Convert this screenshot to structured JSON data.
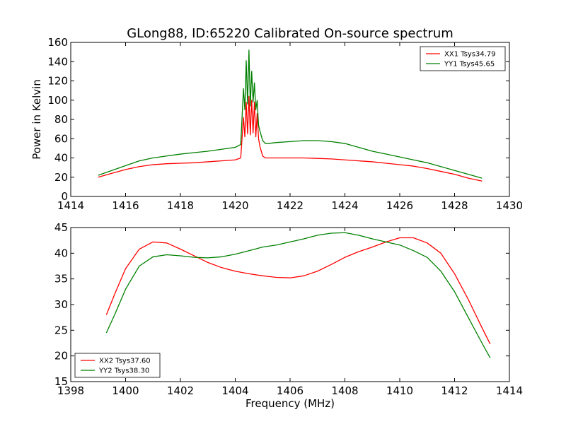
{
  "chart_data": [
    {
      "type": "line",
      "title": "GLong88, ID:65220 Calibrated On-source spectrum",
      "xlabel": "",
      "ylabel": "Power in Kelvin",
      "xlim": [
        1414,
        1430
      ],
      "ylim": [
        0,
        160
      ],
      "xticks": [
        "1414",
        "1416",
        "1418",
        "1420",
        "1422",
        "1424",
        "1426",
        "1428",
        "1430"
      ],
      "yticks": [
        "0",
        "20",
        "40",
        "60",
        "80",
        "100",
        "120",
        "140",
        "160"
      ],
      "legend_position": "top-right",
      "series": [
        {
          "name": "XX1 Tsys34.79",
          "color": "#ff0000",
          "x": [
            1415.0,
            1415.5,
            1416.0,
            1416.5,
            1417.0,
            1417.5,
            1418.0,
            1418.5,
            1419.0,
            1419.5,
            1420.0,
            1420.2,
            1420.3,
            1420.35,
            1420.4,
            1420.45,
            1420.5,
            1420.55,
            1420.6,
            1420.65,
            1420.7,
            1420.75,
            1420.8,
            1420.85,
            1420.9,
            1421.0,
            1421.1,
            1421.2,
            1421.5,
            1422.0,
            1422.5,
            1423.0,
            1423.5,
            1424.0,
            1424.5,
            1425.0,
            1425.5,
            1426.0,
            1426.5,
            1427.0,
            1427.5,
            1428.0,
            1428.5,
            1429.0
          ],
          "y": [
            20,
            24,
            28,
            31,
            33,
            34,
            34.5,
            35,
            36,
            37,
            38,
            40,
            82,
            62,
            98,
            65,
            104,
            64,
            100,
            66,
            98,
            62,
            86,
            60,
            52,
            42,
            40,
            40,
            40,
            40,
            40,
            39.5,
            39,
            38,
            37,
            36,
            34.5,
            33,
            31.5,
            29,
            26,
            23,
            19,
            16
          ]
        },
        {
          "name": "YY1 Tsys45.65",
          "color": "#008000",
          "x": [
            1415.0,
            1415.5,
            1416.0,
            1416.5,
            1417.0,
            1417.5,
            1418.0,
            1418.5,
            1419.0,
            1419.5,
            1420.0,
            1420.2,
            1420.3,
            1420.35,
            1420.4,
            1420.45,
            1420.5,
            1420.55,
            1420.6,
            1420.65,
            1420.7,
            1420.75,
            1420.8,
            1420.85,
            1420.9,
            1421.0,
            1421.1,
            1421.2,
            1421.5,
            1422.0,
            1422.5,
            1423.0,
            1423.5,
            1424.0,
            1424.5,
            1425.0,
            1425.5,
            1426.0,
            1426.5,
            1427.0,
            1427.5,
            1428.0,
            1428.5,
            1429.0
          ],
          "y": [
            22,
            27,
            32,
            37,
            40,
            42,
            44,
            45.5,
            47,
            49,
            51,
            54,
            112,
            90,
            141,
            96,
            152,
            94,
            130,
            98,
            118,
            90,
            100,
            74,
            68,
            58,
            55,
            55,
            56,
            57,
            58,
            58,
            57,
            55,
            51,
            47,
            44,
            41,
            38,
            35,
            31,
            27,
            23,
            19
          ]
        }
      ]
    },
    {
      "type": "line",
      "title": "",
      "xlabel": "Frequency (MHz)",
      "ylabel": "",
      "xlim": [
        1398,
        1414
      ],
      "ylim": [
        15,
        45
      ],
      "xticks": [
        "1398",
        "1400",
        "1402",
        "1404",
        "1406",
        "1408",
        "1410",
        "1412",
        "1414"
      ],
      "yticks": [
        "15",
        "20",
        "25",
        "30",
        "35",
        "40",
        "45"
      ],
      "legend_position": "bottom-left",
      "series": [
        {
          "name": "XX2 Tsys37.60",
          "color": "#ff0000",
          "x": [
            1399.3,
            1399.6,
            1400.0,
            1400.5,
            1401.0,
            1401.5,
            1402.0,
            1402.5,
            1403.0,
            1403.5,
            1404.0,
            1404.5,
            1405.0,
            1405.5,
            1406.0,
            1406.5,
            1407.0,
            1407.5,
            1408.0,
            1408.5,
            1409.0,
            1409.5,
            1410.0,
            1410.5,
            1411.0,
            1411.5,
            1412.0,
            1412.5,
            1413.0,
            1413.3
          ],
          "y": [
            28,
            32,
            37,
            40.8,
            42.2,
            42,
            40.8,
            39.5,
            38.2,
            37.2,
            36.5,
            36,
            35.6,
            35.3,
            35.2,
            35.6,
            36.5,
            37.8,
            39.2,
            40.3,
            41.2,
            42.2,
            43,
            43,
            42,
            40,
            36,
            31,
            25.5,
            22.3
          ]
        },
        {
          "name": "YY2 Tsys38.30",
          "color": "#008000",
          "x": [
            1399.3,
            1399.6,
            1400.0,
            1400.5,
            1401.0,
            1401.5,
            1402.0,
            1402.5,
            1403.0,
            1403.5,
            1404.0,
            1404.5,
            1405.0,
            1405.5,
            1406.0,
            1406.5,
            1407.0,
            1407.5,
            1408.0,
            1408.5,
            1409.0,
            1409.5,
            1410.0,
            1410.5,
            1411.0,
            1411.5,
            1412.0,
            1412.5,
            1413.0,
            1413.3
          ],
          "y": [
            24.5,
            28,
            33,
            37.5,
            39.3,
            39.7,
            39.5,
            39.2,
            39.1,
            39.3,
            39.8,
            40.5,
            41.2,
            41.6,
            42.2,
            42.8,
            43.5,
            43.9,
            44.0,
            43.5,
            42.8,
            42.2,
            41.6,
            40.5,
            39.2,
            36.5,
            32.5,
            27.5,
            22.5,
            19.6
          ]
        }
      ]
    }
  ]
}
